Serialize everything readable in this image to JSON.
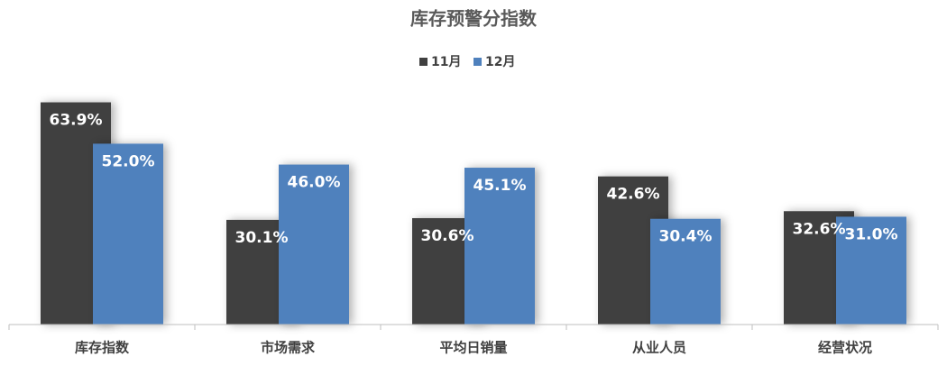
{
  "chart_data": {
    "type": "bar",
    "title": "库存预警分指数",
    "categories": [
      "库存指数",
      "市场需求",
      "平均日销量",
      "从业人员",
      "经营状况"
    ],
    "series": [
      {
        "name": "11月",
        "color": "#404040",
        "values": [
          63.9,
          30.1,
          30.6,
          42.6,
          32.6
        ],
        "value_labels": [
          "63.9%",
          "30.1%",
          "30.6%",
          "42.6%",
          "32.6%"
        ]
      },
      {
        "name": "12月",
        "color": "#4f81bd",
        "values": [
          52.0,
          46.0,
          45.1,
          30.4,
          31.0
        ],
        "value_labels": [
          "52.0%",
          "46.0%",
          "45.1%",
          "30.4%",
          "31.0%"
        ]
      }
    ],
    "ylim": [
      0,
      70
    ],
    "legend": "top"
  }
}
